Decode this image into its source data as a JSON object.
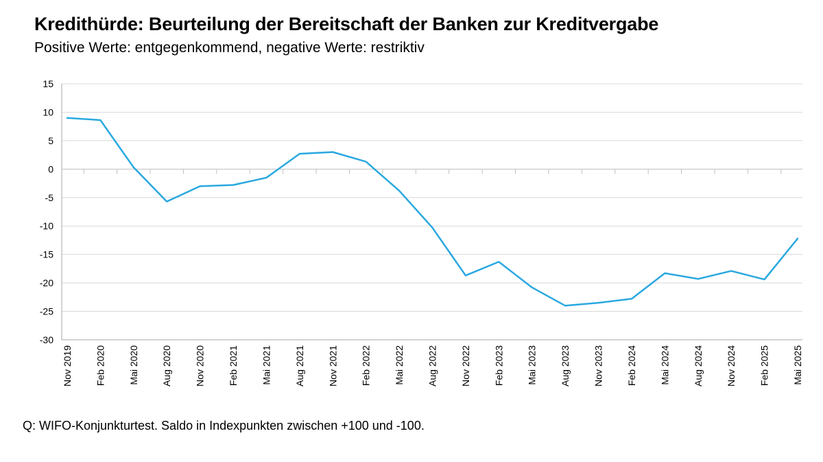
{
  "header": {
    "title": "Kredithürde: Beurteilung der Bereitschaft der Banken zur Kreditvergabe",
    "subtitle": "Positive Werte: entgegenkommend, negative Werte: restriktiv"
  },
  "footer": {
    "source": "Q: WIFO-Konjunkturtest. Saldo in Indexpunkten zwischen +100 und -100."
  },
  "chart_data": {
    "type": "line",
    "title": "Kredithürde: Beurteilung der Bereitschaft der Banken zur Kreditvergabe",
    "subtitle": "Positive Werte: entgegenkommend, negative Werte: restriktiv",
    "xlabel": "",
    "ylabel": "",
    "ylim": [
      -30,
      15
    ],
    "yticks": [
      15,
      10,
      5,
      0,
      -5,
      -10,
      -15,
      -20,
      -25,
      -30
    ],
    "grid": "horizontal",
    "legend": "none",
    "line_color": "#29a8e0",
    "categories": [
      "Nov 2019",
      "Feb 2020",
      "Mai 2020",
      "Aug 2020",
      "Nov 2020",
      "Feb 2021",
      "Mai 2021",
      "Aug 2021",
      "Nov 2021",
      "Feb 2022",
      "Mai 2022",
      "Aug 2022",
      "Nov 2022",
      "Feb 2023",
      "Mai 2023",
      "Aug 2023",
      "Nov 2023",
      "Feb 2024",
      "Mai 2024",
      "Aug 2024",
      "Nov 2024",
      "Feb 2025",
      "Mai 2025"
    ],
    "series": [
      {
        "values": [
          9.0,
          8.6,
          0.3,
          -5.7,
          -3.0,
          -2.8,
          -1.5,
          2.7,
          3.0,
          1.3,
          -3.8,
          -10.3,
          -18.7,
          -16.3,
          -20.8,
          -24.0,
          -23.5,
          -22.8,
          -18.3,
          -19.3,
          -17.9,
          -19.4,
          -12.2
        ]
      }
    ]
  }
}
